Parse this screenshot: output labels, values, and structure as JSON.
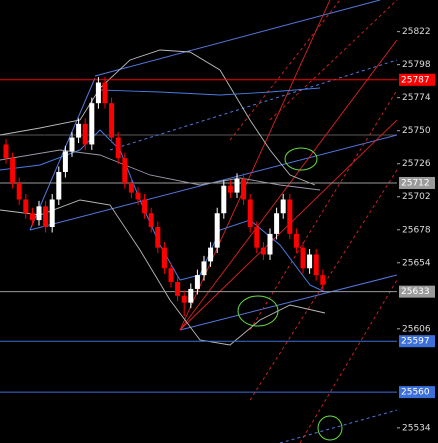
{
  "chart_data": {
    "type": "candlestick",
    "ylim": [
      25523,
      25845
    ],
    "yticks": [
      25822,
      25798,
      25774,
      25750,
      25726,
      25702,
      25678,
      25654,
      25606,
      25534
    ],
    "up_color": "#ffffff",
    "down_color": "#ff0000",
    "candles": [
      [
        25740,
        25744,
        25726,
        25730
      ],
      [
        25730,
        25734,
        25708,
        25712
      ],
      [
        25712,
        25716,
        25696,
        25700
      ],
      [
        25700,
        25704,
        25686,
        25690
      ],
      [
        25690,
        25694,
        25681,
        25685
      ],
      [
        25685,
        25699,
        25681,
        25695
      ],
      [
        25695,
        25699,
        25676,
        25680
      ],
      [
        25680,
        25704,
        25676,
        25700
      ],
      [
        25700,
        25724,
        25696,
        25720
      ],
      [
        25720,
        25739,
        25716,
        25735
      ],
      [
        25735,
        25749,
        25731,
        25745
      ],
      [
        25745,
        25759,
        25741,
        25755
      ],
      [
        25755,
        25759,
        25736,
        25740
      ],
      [
        25740,
        25774,
        25736,
        25770
      ],
      [
        25770,
        25789,
        25766,
        25785
      ],
      [
        25785,
        25789,
        25766,
        25770
      ],
      [
        25770,
        25774,
        25741,
        25745
      ],
      [
        25745,
        25749,
        25726,
        25730
      ],
      [
        25730,
        25734,
        25708,
        25712
      ],
      [
        25712,
        25716,
        25701,
        25705
      ],
      [
        25705,
        25709,
        25696,
        25700
      ],
      [
        25700,
        25704,
        25686,
        25690
      ],
      [
        25690,
        25694,
        25676,
        25680
      ],
      [
        25680,
        25684,
        25661,
        25665
      ],
      [
        25665,
        25669,
        25646,
        25650
      ],
      [
        25650,
        25654,
        25636,
        25640
      ],
      [
        25640,
        25644,
        25626,
        25630
      ],
      [
        25630,
        25634,
        25615,
        25625
      ],
      [
        25625,
        25639,
        25621,
        25635
      ],
      [
        25635,
        25649,
        25631,
        25645
      ],
      [
        25645,
        25659,
        25641,
        25655
      ],
      [
        25655,
        25669,
        25651,
        25665
      ],
      [
        25665,
        25694,
        25661,
        25690
      ],
      [
        25690,
        25714,
        25686,
        25710
      ],
      [
        25710,
        25714,
        25701,
        25705
      ],
      [
        25705,
        25719,
        25701,
        25715
      ],
      [
        25715,
        25719,
        25696,
        25700
      ],
      [
        25700,
        25704,
        25676,
        25680
      ],
      [
        25680,
        25684,
        25661,
        25665
      ],
      [
        25665,
        25669,
        25656,
        25660
      ],
      [
        25660,
        25679,
        25656,
        25675
      ],
      [
        25675,
        25694,
        25671,
        25690
      ],
      [
        25690,
        25704,
        25686,
        25700
      ],
      [
        25700,
        25704,
        25671,
        25675
      ],
      [
        25675,
        25679,
        25661,
        25665
      ],
      [
        25665,
        25669,
        25646,
        25650
      ],
      [
        25650,
        25664,
        25646,
        25660
      ],
      [
        25660,
        25664,
        25641,
        25645
      ],
      [
        25645,
        25649,
        25634,
        25638
      ]
    ],
    "levels": [
      {
        "value": 25787,
        "color": "#ff0000"
      },
      {
        "value": 25712,
        "color": "#9a9a9a"
      },
      {
        "value": 25633,
        "color": "#9a9a9a"
      },
      {
        "value": 25597,
        "color": "#3d6fd8"
      },
      {
        "value": 25560,
        "color": "#3d6fd8"
      }
    ]
  }
}
